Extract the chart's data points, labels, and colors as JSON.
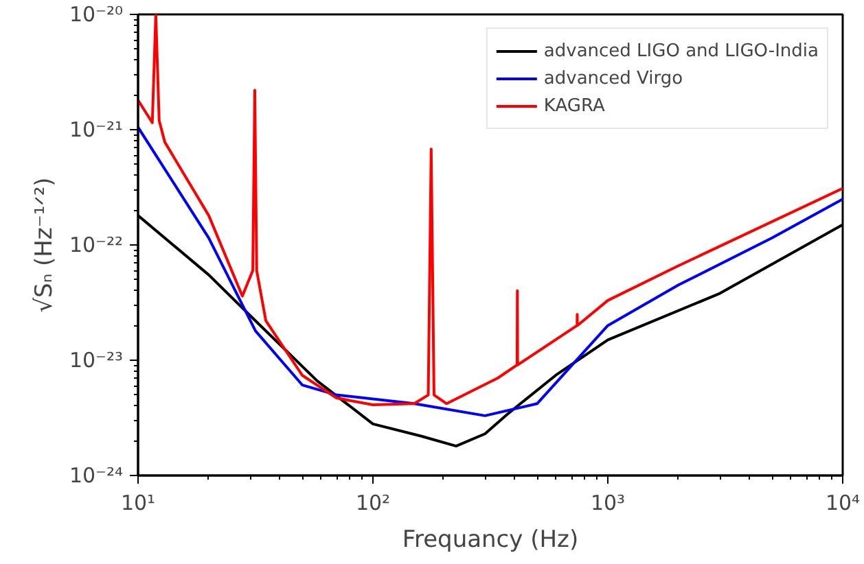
{
  "chart_data": {
    "type": "line",
    "xlabel": "Frequancy (Hz)",
    "ylabel": "√Sₙ (Hz⁻¹ᐟ²)",
    "log": "xy",
    "grid": false,
    "legend": "top right",
    "line_style": "solid",
    "marker": "none",
    "xlim": [
      10,
      10000
    ],
    "ylim": [
      1e-24,
      1e-20
    ],
    "xticks": [
      {
        "value": 10,
        "label": "10¹"
      },
      {
        "value": 100,
        "label": "10²"
      },
      {
        "value": 1000,
        "label": "10³"
      },
      {
        "value": 10000,
        "label": "10⁴"
      }
    ],
    "yticks": [
      {
        "value": 1e-24,
        "label": "10⁻²⁴"
      },
      {
        "value": 1e-23,
        "label": "10⁻²³"
      },
      {
        "value": 1e-22,
        "label": "10⁻²²"
      },
      {
        "value": 1e-21,
        "label": "10⁻²¹"
      },
      {
        "value": 1e-20,
        "label": "10⁻²⁰"
      }
    ],
    "series": [
      {
        "name": "advanced LIGO and LIGO-India",
        "color": "#000000",
        "x": [
          10,
          20,
          31.6,
          58,
          100,
          160,
          226,
          300,
          380,
          600,
          1000,
          3000,
          10000
        ],
        "values": [
          1.8e-22,
          5.5e-23,
          2.2e-23,
          6.6e-24,
          2.8e-24,
          2.2e-24,
          1.8e-24,
          2.3e-24,
          3.5e-24,
          7.4e-24,
          1.5e-23,
          3.8e-23,
          1.5e-22
        ]
      },
      {
        "name": "advanced Virgo",
        "color": "#0000ff",
        "x": [
          10,
          20,
          31.6,
          50,
          70,
          150,
          300,
          500,
          1000,
          2000,
          5000,
          10000
        ],
        "values": [
          1.05e-21,
          1.15e-22,
          1.8e-23,
          6.1e-24,
          5e-24,
          4.2e-24,
          3.3e-24,
          4.2e-24,
          2e-23,
          4.5e-23,
          1.15e-22,
          2.5e-22
        ]
      },
      {
        "name": "KAGRA",
        "color": "#ff0000",
        "x": [
          10,
          11.5,
          11.9,
          12.3,
          13,
          20,
          27.8,
          30.8,
          31.4,
          32,
          35,
          50,
          70,
          100,
          150,
          172,
          177,
          182,
          206,
          340,
          411,
          412,
          413,
          740,
          741,
          742,
          1000,
          2000,
          10000
        ],
        "values": [
          1.8e-21,
          1.15e-21,
          1e-20,
          1.2e-21,
          7.8e-22,
          1.8e-22,
          3.6e-23,
          6e-23,
          2.2e-21,
          6e-23,
          2.2e-23,
          7.4e-24,
          4.7e-24,
          4.1e-24,
          4.2e-24,
          5e-24,
          6.8e-22,
          5e-24,
          4.2e-24,
          7e-24,
          9.1e-24,
          4e-23,
          9.1e-24,
          2e-23,
          2.5e-23,
          2e-23,
          3.3e-23,
          6.6e-23,
          3.1e-22
        ]
      }
    ]
  }
}
